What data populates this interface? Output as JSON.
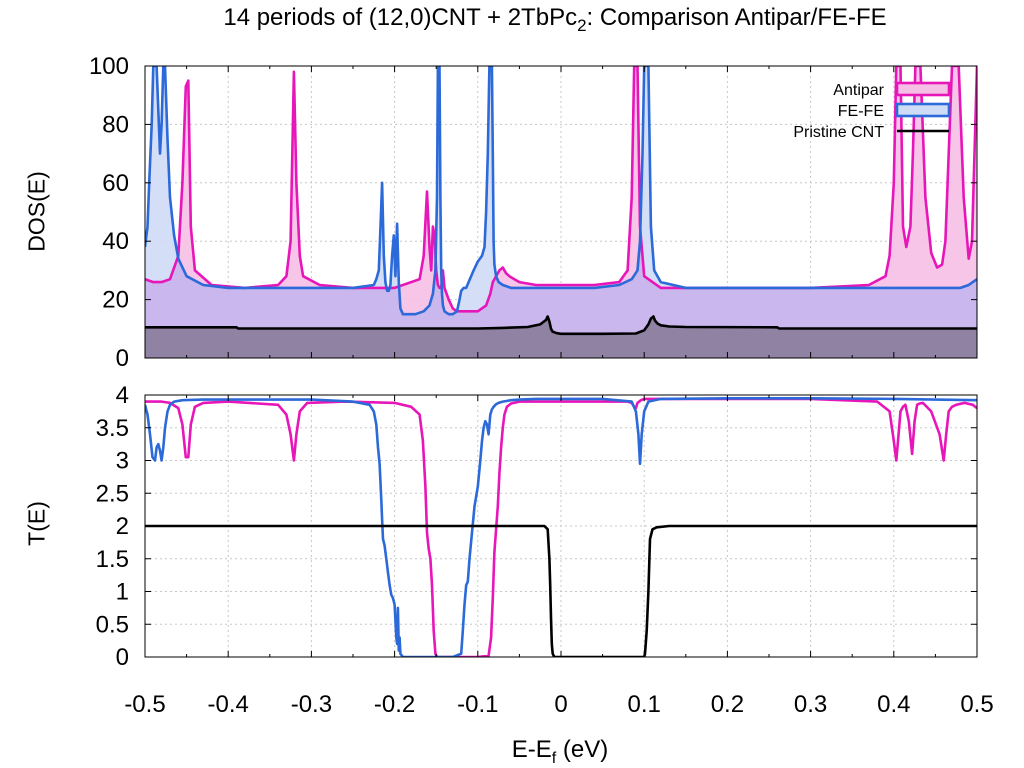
{
  "title_main": "14 periods of (12,0)CNT + 2TbPc",
  "title_sub": "2",
  "title_rest": ": Comparison Antipar/FE-FE",
  "x_label_main": "E-E",
  "x_label_sub": "f",
  "x_label_rest": " (eV)",
  "colors": {
    "antipar": "#e716b9",
    "fefe": "#2c6ad9",
    "pristine": "#000000",
    "antipar_fill": "#f6bfe6",
    "fefe_fill": "#cfdcf6",
    "overlap_fill": "#c9b7ee",
    "pristine_fill": "#8f82a3"
  },
  "chart_data": [
    {
      "type": "area",
      "ylabel": "DOS(E)",
      "xlim": [
        -0.5,
        0.5
      ],
      "ylim": [
        0,
        100
      ],
      "grid": true,
      "legend": "top-right",
      "x_ticks": [
        -0.5,
        -0.4,
        -0.3,
        -0.2,
        -0.1,
        0,
        0.1,
        0.2,
        0.3,
        0.4,
        0.5
      ],
      "y_ticks": [
        "0",
        "20",
        "40",
        "60",
        "80",
        "100"
      ],
      "series": [
        {
          "name": "Antipar",
          "x": [
            -0.5,
            -0.49,
            -0.48,
            -0.47,
            -0.46,
            -0.455,
            -0.451,
            -0.448,
            -0.445,
            -0.44,
            -0.42,
            -0.38,
            -0.34,
            -0.33,
            -0.325,
            -0.321,
            -0.318,
            -0.314,
            -0.31,
            -0.29,
            -0.25,
            -0.2,
            -0.17,
            -0.165,
            -0.161,
            -0.158,
            -0.156,
            -0.154,
            -0.152,
            -0.15,
            -0.148,
            -0.146,
            -0.144,
            -0.142,
            -0.14,
            -0.135,
            -0.13,
            -0.125,
            -0.12,
            -0.11,
            -0.1,
            -0.09,
            -0.085,
            -0.082,
            -0.078,
            -0.074,
            -0.07,
            -0.066,
            -0.062,
            -0.056,
            -0.05,
            -0.03,
            0,
            0.04,
            0.07,
            0.08,
            0.085,
            0.088,
            0.09,
            0.092,
            0.095,
            0.1,
            0.12,
            0.2,
            0.3,
            0.37,
            0.39,
            0.395,
            0.4,
            0.403,
            0.405,
            0.408,
            0.411,
            0.415,
            0.42,
            0.423,
            0.426,
            0.429,
            0.432,
            0.438,
            0.445,
            0.452,
            0.458,
            0.462,
            0.466,
            0.47,
            0.474,
            0.478,
            0.484,
            0.49,
            0.494,
            0.497,
            0.5
          ],
          "y": [
            27,
            26,
            26,
            27,
            35,
            60,
            93,
            95,
            45,
            30,
            25,
            24,
            25,
            28,
            40,
            98,
            60,
            35,
            28,
            25,
            24,
            24,
            27,
            35,
            57,
            38,
            30,
            45,
            42,
            30,
            25,
            24,
            24,
            30,
            24,
            20,
            17,
            16,
            16,
            16,
            16,
            18,
            22,
            26,
            28,
            30,
            31,
            29,
            28,
            27,
            26,
            25,
            25,
            25,
            26,
            30,
            55,
            100,
            100,
            100,
            45,
            28,
            24,
            24,
            24,
            25,
            28,
            35,
            60,
            100,
            100,
            100,
            45,
            38,
            45,
            70,
            100,
            100,
            100,
            55,
            36,
            31,
            32,
            40,
            70,
            100,
            100,
            100,
            55,
            34,
            40,
            70,
            100
          ]
        },
        {
          "name": "FE-FE",
          "x": [
            -0.5,
            -0.497,
            -0.495,
            -0.492,
            -0.49,
            -0.488,
            -0.486,
            -0.484,
            -0.482,
            -0.48,
            -0.478,
            -0.476,
            -0.473,
            -0.47,
            -0.465,
            -0.46,
            -0.45,
            -0.43,
            -0.4,
            -0.35,
            -0.3,
            -0.25,
            -0.225,
            -0.222,
            -0.219,
            -0.217,
            -0.215,
            -0.213,
            -0.211,
            -0.209,
            -0.207,
            -0.205,
            -0.203,
            -0.201,
            -0.199,
            -0.197,
            -0.195,
            -0.193,
            -0.19,
            -0.185,
            -0.175,
            -0.165,
            -0.158,
            -0.154,
            -0.151,
            -0.149,
            -0.148,
            -0.147,
            -0.146,
            -0.145,
            -0.144,
            -0.143,
            -0.142,
            -0.14,
            -0.135,
            -0.13,
            -0.125,
            -0.122,
            -0.12,
            -0.117,
            -0.114,
            -0.111,
            -0.108,
            -0.105,
            -0.1,
            -0.095,
            -0.092,
            -0.09,
            -0.088,
            -0.086,
            -0.085,
            -0.084,
            -0.083,
            -0.082,
            -0.081,
            -0.08,
            -0.078,
            -0.075,
            -0.07,
            -0.06,
            -0.04,
            0,
            0.04,
            0.07,
            0.085,
            0.092,
            0.095,
            0.098,
            0.1,
            0.102,
            0.105,
            0.108,
            0.112,
            0.12,
            0.15,
            0.2,
            0.3,
            0.4,
            0.45,
            0.48,
            0.49,
            0.495,
            0.5
          ],
          "y": [
            38,
            45,
            60,
            80,
            100,
            100,
            100,
            85,
            70,
            80,
            100,
            100,
            75,
            55,
            42,
            34,
            28,
            25,
            24,
            24,
            24,
            24,
            25,
            27,
            30,
            45,
            60,
            35,
            26,
            23,
            23,
            25,
            35,
            42,
            28,
            46,
            26,
            17,
            15,
            15,
            15,
            16,
            18,
            22,
            30,
            55,
            100,
            100,
            100,
            55,
            30,
            22,
            18,
            16,
            15,
            15,
            16,
            20,
            23,
            24,
            24,
            26,
            28,
            30,
            33,
            35,
            38,
            50,
            70,
            100,
            100,
            100,
            100,
            70,
            40,
            32,
            28,
            26,
            25,
            24,
            24,
            24,
            24,
            25,
            27,
            30,
            40,
            70,
            100,
            100,
            100,
            45,
            30,
            26,
            24,
            24,
            24,
            24,
            24,
            24,
            25,
            26,
            27
          ]
        },
        {
          "name": "Pristine CNT",
          "x": [
            -0.5,
            -0.39,
            -0.388,
            -0.25,
            -0.1,
            -0.07,
            -0.04,
            -0.025,
            -0.018,
            -0.016,
            -0.014,
            -0.012,
            -0.01,
            -0.005,
            0,
            0.05,
            0.09,
            0.1,
            0.105,
            0.108,
            0.111,
            0.113,
            0.116,
            0.12,
            0.13,
            0.15,
            0.26,
            0.262,
            0.4,
            0.5
          ],
          "y": [
            10.5,
            10.5,
            10.1,
            10.1,
            10.1,
            10.3,
            10.6,
            11.5,
            13,
            14.2,
            12.5,
            10,
            9,
            8.5,
            8.3,
            8.3,
            8.4,
            9.5,
            11.5,
            13.5,
            14.2,
            12.8,
            11.8,
            11.2,
            10.8,
            10.6,
            10.5,
            10.1,
            10.1,
            10.1
          ]
        }
      ]
    },
    {
      "type": "line",
      "xlabel": "E-Ef (eV)",
      "ylabel": "T(E)",
      "xlim": [
        -0.5,
        0.5
      ],
      "ylim": [
        0,
        4
      ],
      "grid": true,
      "x_ticks": [
        -0.5,
        -0.4,
        -0.3,
        -0.2,
        -0.1,
        0,
        0.1,
        0.2,
        0.3,
        0.4,
        0.5
      ],
      "x_tick_labels": [
        "-0.5",
        "-0.4",
        "-0.3",
        "-0.2",
        "-0.1",
        "0",
        "0.1",
        "0.2",
        "0.3",
        "0.4",
        "0.5"
      ],
      "y_ticks": [
        "0",
        "0.5",
        "1",
        "1.5",
        "2",
        "2.5",
        "3",
        "3.5",
        "4"
      ],
      "series": [
        {
          "name": "Antipar",
          "x": [
            -0.5,
            -0.48,
            -0.47,
            -0.46,
            -0.455,
            -0.451,
            -0.448,
            -0.445,
            -0.44,
            -0.43,
            -0.4,
            -0.34,
            -0.33,
            -0.325,
            -0.321,
            -0.318,
            -0.314,
            -0.305,
            -0.26,
            -0.2,
            -0.18,
            -0.17,
            -0.166,
            -0.163,
            -0.161,
            -0.159,
            -0.157,
            -0.155,
            -0.153,
            -0.151,
            -0.149,
            -0.146,
            -0.12,
            -0.1,
            -0.087,
            -0.084,
            -0.082,
            -0.08,
            -0.078,
            -0.076,
            -0.074,
            -0.072,
            -0.07,
            -0.068,
            -0.065,
            -0.06,
            -0.05,
            -0.03,
            0,
            0.06,
            0.08,
            0.085,
            0.088,
            0.09,
            0.092,
            0.096,
            0.1,
            0.2,
            0.3,
            0.38,
            0.395,
            0.4,
            0.403,
            0.405,
            0.408,
            0.411,
            0.414,
            0.418,
            0.422,
            0.425,
            0.428,
            0.431,
            0.435,
            0.445,
            0.455,
            0.46,
            0.463,
            0.466,
            0.47,
            0.475,
            0.485,
            0.495,
            0.5
          ],
          "y": [
            3.9,
            3.9,
            3.88,
            3.8,
            3.55,
            3.05,
            3.05,
            3.55,
            3.82,
            3.88,
            3.9,
            3.85,
            3.7,
            3.4,
            3.0,
            3.4,
            3.75,
            3.88,
            3.9,
            3.88,
            3.82,
            3.7,
            3.3,
            2.6,
            1.9,
            1.65,
            1.5,
            1.1,
            0.4,
            0.05,
            0,
            0,
            0,
            0,
            0.02,
            0.3,
            0.9,
            1.6,
            1.95,
            2.3,
            2.8,
            3.2,
            3.5,
            3.7,
            3.82,
            3.87,
            3.9,
            3.9,
            3.9,
            3.9,
            3.9,
            3.88,
            3.82,
            3.8,
            3.88,
            3.92,
            3.94,
            3.94,
            3.94,
            3.9,
            3.75,
            3.3,
            3.0,
            3.3,
            3.75,
            3.82,
            3.85,
            3.6,
            3.1,
            3.6,
            3.85,
            3.87,
            3.88,
            3.75,
            3.4,
            3.0,
            3.4,
            3.75,
            3.82,
            3.85,
            3.88,
            3.85,
            3.8
          ]
        },
        {
          "name": "FE-FE",
          "x": [
            -0.5,
            -0.497,
            -0.494,
            -0.491,
            -0.488,
            -0.486,
            -0.484,
            -0.482,
            -0.48,
            -0.478,
            -0.476,
            -0.473,
            -0.47,
            -0.465,
            -0.455,
            -0.43,
            -0.4,
            -0.3,
            -0.25,
            -0.23,
            -0.225,
            -0.222,
            -0.22,
            -0.218,
            -0.216,
            -0.215,
            -0.214,
            -0.212,
            -0.21,
            -0.208,
            -0.206,
            -0.204,
            -0.202,
            -0.2,
            -0.198,
            -0.197,
            -0.196,
            -0.195,
            -0.194,
            -0.193,
            -0.19,
            -0.17,
            -0.15,
            -0.13,
            -0.12,
            -0.118,
            -0.116,
            -0.114,
            -0.112,
            -0.11,
            -0.107,
            -0.104,
            -0.1,
            -0.097,
            -0.095,
            -0.093,
            -0.091,
            -0.089,
            -0.087,
            -0.085,
            -0.083,
            -0.081,
            -0.078,
            -0.075,
            -0.07,
            -0.06,
            -0.05,
            -0.03,
            0,
            0.05,
            0.085,
            0.09,
            0.093,
            0.095,
            0.097,
            0.1,
            0.105,
            0.12,
            0.2,
            0.3,
            0.4,
            0.5
          ],
          "y": [
            3.85,
            3.7,
            3.4,
            3.05,
            3.0,
            3.2,
            3.25,
            3.15,
            3.0,
            3.2,
            3.5,
            3.75,
            3.85,
            3.9,
            3.92,
            3.93,
            3.93,
            3.93,
            3.9,
            3.85,
            3.75,
            3.55,
            3.2,
            2.95,
            2.4,
            2.1,
            1.8,
            1.7,
            1.5,
            1.3,
            1.1,
            0.95,
            0.9,
            0.8,
            0.3,
            0.2,
            0.75,
            0.1,
            0.3,
            0.05,
            0,
            0,
            0,
            0,
            0.05,
            0.4,
            0.8,
            1.1,
            1.15,
            1.5,
            1.9,
            2.3,
            2.6,
            3.0,
            3.3,
            3.5,
            3.6,
            3.55,
            3.4,
            3.7,
            3.78,
            3.82,
            3.86,
            3.88,
            3.9,
            3.92,
            3.93,
            3.94,
            3.94,
            3.94,
            3.9,
            3.75,
            3.4,
            2.95,
            3.4,
            3.75,
            3.9,
            3.94,
            3.95,
            3.95,
            3.94,
            3.92
          ]
        },
        {
          "name": "Pristine CNT",
          "x": [
            -0.5,
            -0.02,
            -0.016,
            -0.014,
            -0.013,
            -0.012,
            -0.011,
            -0.01,
            -0.008,
            -0.005,
            0,
            0.05,
            0.1,
            0.101,
            0.103,
            0.105,
            0.107,
            0.11,
            0.115,
            0.13,
            0.2,
            0.5
          ],
          "y": [
            2,
            2,
            1.95,
            1.5,
            1.1,
            0.6,
            0.2,
            0.05,
            0,
            0,
            0,
            0,
            0,
            0.05,
            0.4,
            1.0,
            1.8,
            1.95,
            1.98,
            2,
            2,
            2
          ]
        }
      ]
    }
  ]
}
